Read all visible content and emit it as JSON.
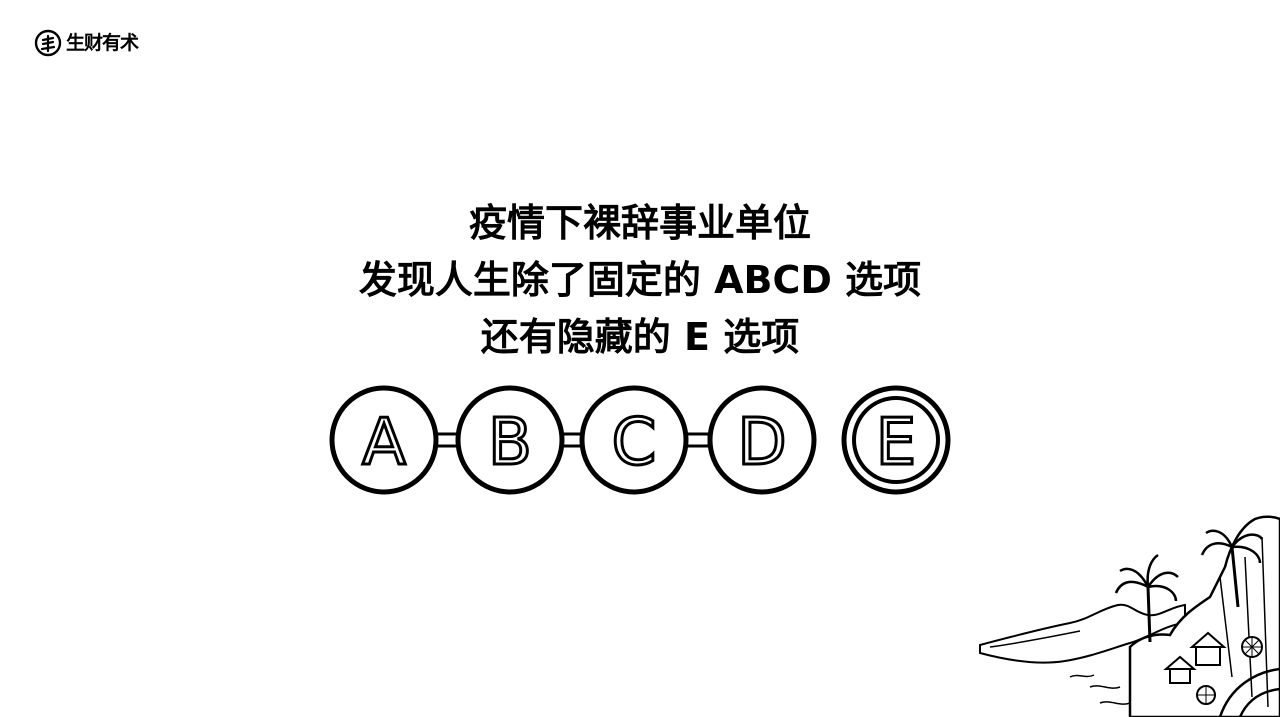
{
  "brand": {
    "name": "生财有术",
    "icon": "brand-logo-icon"
  },
  "headline": {
    "line1": "疫情下裸辞事业单位",
    "line2": "发现人生除了固定的 ABCD 选项",
    "line3": "还有隐藏的 E 选项"
  },
  "options": [
    "A",
    "B",
    "C",
    "D",
    "E"
  ],
  "highlighted_option": "E",
  "colors": {
    "ink": "#000000",
    "background": "#ffffff"
  }
}
